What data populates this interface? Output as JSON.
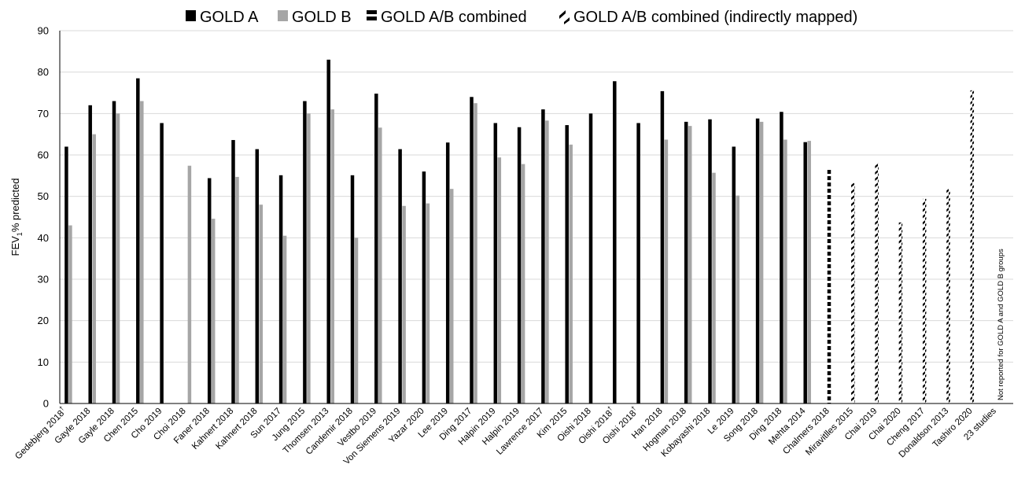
{
  "chart_data": {
    "type": "bar",
    "ylabel": "FEV",
    "ylabel_sub": "1",
    "ylabel_suffix": "% predicted",
    "ylim": [
      0,
      90
    ],
    "yticks": [
      0,
      10,
      20,
      30,
      40,
      50,
      60,
      70,
      80,
      90
    ],
    "grid": true,
    "legend_position": "top",
    "series": [
      {
        "name": "GOLD A",
        "style": "solid-black",
        "color": "#000000"
      },
      {
        "name": "GOLD B",
        "style": "solid-gray",
        "color": "#a6a6a6"
      },
      {
        "name": "GOLD A/B combined",
        "style": "dash-black",
        "color": "#000000"
      },
      {
        "name": "GOLD A/B combined (indirectly mapped)",
        "style": "diagonal-dash-black",
        "color": "#000000"
      }
    ],
    "categories": [
      {
        "label": "Gedebjerg 2018",
        "sup": "†",
        "a": 62,
        "b": 43
      },
      {
        "label": "Gayle 2018",
        "sup": "",
        "a": 72,
        "b": 65
      },
      {
        "label": "Gayle 2018",
        "sup": "",
        "a": 73,
        "b": 70
      },
      {
        "label": "Chen 2015",
        "sup": "",
        "a": 78.5,
        "b": 73
      },
      {
        "label": "Cho 2019",
        "sup": "",
        "a": 67.7,
        "b": null
      },
      {
        "label": "Choi 2018",
        "sup": "",
        "a": null,
        "b": 57.4
      },
      {
        "label": "Faner 2018",
        "sup": "",
        "a": 54.4,
        "b": 44.6
      },
      {
        "label": "Kahnert 2018",
        "sup": "",
        "a": 63.6,
        "b": 54.7
      },
      {
        "label": "Kahnert 2018",
        "sup": "",
        "a": 61.4,
        "b": 48
      },
      {
        "label": "Sun 2017",
        "sup": "",
        "a": 55.1,
        "b": 40.5
      },
      {
        "label": "Jung 2015",
        "sup": "",
        "a": 73,
        "b": 70
      },
      {
        "label": "Thomsen 2013",
        "sup": "",
        "a": 83,
        "b": 71
      },
      {
        "label": "Candemir 2018",
        "sup": "",
        "a": 55.1,
        "b": 40
      },
      {
        "label": "Vestbo 2019",
        "sup": "",
        "a": 74.8,
        "b": 66.6
      },
      {
        "label": "Von Siemens 2019",
        "sup": "",
        "a": 61.4,
        "b": 47.7
      },
      {
        "label": "Yazar 2020",
        "sup": "",
        "a": 56,
        "b": 48.3
      },
      {
        "label": "Lee 2019",
        "sup": "",
        "a": 63,
        "b": 51.8
      },
      {
        "label": "Ding 2017",
        "sup": "",
        "a": 74,
        "b": 72.5
      },
      {
        "label": "Halpin 2019",
        "sup": "",
        "a": 67.7,
        "b": 59.4
      },
      {
        "label": "Halpin 2019",
        "sup": "",
        "a": 66.7,
        "b": 57.8
      },
      {
        "label": "Lawrence 2017",
        "sup": "",
        "a": 71,
        "b": 68.3
      },
      {
        "label": "Kim 2015",
        "sup": "",
        "a": 67.2,
        "b": 62.5
      },
      {
        "label": "Oishi 2018",
        "sup": "",
        "a": 70,
        "b": null
      },
      {
        "label": "Oishi 2018",
        "sup": "†",
        "a": 77.8,
        "b": null
      },
      {
        "label": "Oishi 2018",
        "sup": "†",
        "a": 67.7,
        "b": null
      },
      {
        "label": "Han 2018",
        "sup": "",
        "a": 75.4,
        "b": 63.7
      },
      {
        "label": "Hogman 2018",
        "sup": "",
        "a": 68,
        "b": 67
      },
      {
        "label": "Kobayashi 2018",
        "sup": "",
        "a": 68.6,
        "b": 55.7
      },
      {
        "label": "Le 2019",
        "sup": "",
        "a": 62,
        "b": 50.2
      },
      {
        "label": "Song 2018",
        "sup": "",
        "a": 68.8,
        "b": 68
      },
      {
        "label": "Ding 2018",
        "sup": "",
        "a": 70.4,
        "b": 63.7
      },
      {
        "label": "Mehta 2014",
        "sup": "",
        "a": 63.1,
        "b": 63.4
      },
      {
        "label": "Chalmers 2018",
        "sup": "",
        "combined": 56.8
      },
      {
        "label": "Miravitlles 2015",
        "sup": "",
        "indirect": 53.2
      },
      {
        "label": "Chai 2019",
        "sup": "",
        "indirect": 58
      },
      {
        "label": "Chai 2020",
        "sup": "",
        "indirect": 43.7
      },
      {
        "label": "Cheng 2017",
        "sup": "",
        "indirect": 49.4
      },
      {
        "label": "Donaldson 2013",
        "sup": "",
        "indirect": 51.8
      },
      {
        "label": "Tashiro 2020",
        "sup": "",
        "indirect": 75.6
      },
      {
        "label": "23 studies",
        "sup": "",
        "note": "Not reported for GOLD A and GOLD B groups"
      }
    ]
  }
}
